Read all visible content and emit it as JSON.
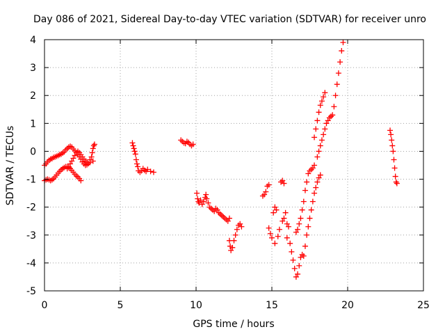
{
  "chart_data": {
    "type": "scatter",
    "title": "Day 086 of 2021, Sidereal Day-to-day VTEC variation (SDTVAR) for receiver unro",
    "xlabel": "GPS time / hours",
    "ylabel": "SDTVAR / TECUs",
    "xlim": [
      0,
      25
    ],
    "ylim": [
      -5,
      4
    ],
    "xticks": [
      0,
      5,
      10,
      15,
      20,
      25
    ],
    "yticks": [
      -5,
      -4,
      -3,
      -2,
      -1,
      0,
      1,
      2,
      3,
      4
    ],
    "xtick_labels": [
      "0",
      "5",
      "10",
      "15",
      "20",
      "25"
    ],
    "ytick_labels": [
      "-5",
      "-4",
      "-3",
      "-2",
      "-1",
      "0",
      "1",
      "2",
      "3",
      "4"
    ],
    "grid": true,
    "marker": "+",
    "series": [
      {
        "name": "SDTVAR",
        "color": "#ff0000",
        "points": [
          [
            0.0,
            -0.5
          ],
          [
            0.1,
            -0.45
          ],
          [
            0.2,
            -0.38
          ],
          [
            0.3,
            -0.32
          ],
          [
            0.4,
            -0.28
          ],
          [
            0.5,
            -0.26
          ],
          [
            0.6,
            -0.22
          ],
          [
            0.7,
            -0.2
          ],
          [
            0.8,
            -0.18
          ],
          [
            0.9,
            -0.15
          ],
          [
            1.0,
            -0.12
          ],
          [
            1.1,
            -0.1
          ],
          [
            1.2,
            -0.06
          ],
          [
            1.3,
            -0.02
          ],
          [
            1.4,
            0.05
          ],
          [
            1.5,
            0.1
          ],
          [
            1.6,
            0.15
          ],
          [
            1.7,
            0.18
          ],
          [
            1.8,
            0.15
          ],
          [
            1.9,
            0.08
          ],
          [
            2.0,
            0.02
          ],
          [
            2.1,
            -0.05
          ],
          [
            2.2,
            -0.12
          ],
          [
            2.3,
            -0.2
          ],
          [
            2.4,
            -0.28
          ],
          [
            2.5,
            -0.38
          ],
          [
            2.6,
            -0.45
          ],
          [
            2.7,
            -0.5
          ],
          [
            2.8,
            -0.48
          ],
          [
            2.9,
            -0.44
          ],
          [
            3.0,
            -0.4
          ],
          [
            0.0,
            -1.05
          ],
          [
            0.1,
            -1.02
          ],
          [
            0.2,
            -1.0
          ],
          [
            0.3,
            -1.02
          ],
          [
            0.4,
            -1.05
          ],
          [
            0.5,
            -1.02
          ],
          [
            0.6,
            -0.98
          ],
          [
            0.7,
            -0.92
          ],
          [
            0.8,
            -0.85
          ],
          [
            0.9,
            -0.78
          ],
          [
            1.0,
            -0.72
          ],
          [
            1.1,
            -0.66
          ],
          [
            1.2,
            -0.62
          ],
          [
            1.3,
            -0.58
          ],
          [
            1.4,
            -0.55
          ],
          [
            1.5,
            -0.55
          ],
          [
            1.6,
            -0.58
          ],
          [
            1.7,
            -0.62
          ],
          [
            1.8,
            -0.68
          ],
          [
            1.9,
            -0.75
          ],
          [
            2.0,
            -0.82
          ],
          [
            2.1,
            -0.88
          ],
          [
            2.2,
            -0.92
          ],
          [
            2.3,
            -0.98
          ],
          [
            2.4,
            -1.05
          ],
          [
            1.5,
            -0.62
          ],
          [
            1.6,
            -0.55
          ],
          [
            1.7,
            -0.45
          ],
          [
            1.8,
            -0.35
          ],
          [
            1.9,
            -0.25
          ],
          [
            2.0,
            -0.15
          ],
          [
            2.1,
            -0.05
          ],
          [
            2.2,
            0.0
          ],
          [
            2.3,
            -0.05
          ],
          [
            2.4,
            -0.12
          ],
          [
            2.5,
            -0.2
          ],
          [
            2.6,
            -0.28
          ],
          [
            2.7,
            -0.35
          ],
          [
            2.8,
            -0.4
          ],
          [
            3.0,
            -0.3
          ],
          [
            3.1,
            -0.2
          ],
          [
            3.15,
            -0.05
          ],
          [
            3.2,
            0.1
          ],
          [
            3.25,
            0.2
          ],
          [
            3.3,
            0.25
          ],
          [
            3.2,
            -0.35
          ],
          [
            5.8,
            0.3
          ],
          [
            5.85,
            0.2
          ],
          [
            5.9,
            0.1
          ],
          [
            5.95,
            0.0
          ],
          [
            6.0,
            -0.1
          ],
          [
            6.05,
            -0.3
          ],
          [
            6.1,
            -0.45
          ],
          [
            6.15,
            -0.55
          ],
          [
            6.2,
            -0.7
          ],
          [
            6.3,
            -0.75
          ],
          [
            6.4,
            -0.7
          ],
          [
            6.5,
            -0.62
          ],
          [
            6.6,
            -0.68
          ],
          [
            6.7,
            -0.72
          ],
          [
            6.8,
            -0.65
          ],
          [
            7.0,
            -0.72
          ],
          [
            7.2,
            -0.75
          ],
          [
            9.0,
            0.4
          ],
          [
            9.1,
            0.35
          ],
          [
            9.2,
            0.3
          ],
          [
            9.3,
            0.28
          ],
          [
            9.4,
            0.35
          ],
          [
            9.5,
            0.32
          ],
          [
            9.6,
            0.25
          ],
          [
            9.7,
            0.2
          ],
          [
            9.8,
            0.25
          ],
          [
            10.05,
            -1.5
          ],
          [
            10.1,
            -1.7
          ],
          [
            10.15,
            -1.8
          ],
          [
            10.2,
            -1.85
          ],
          [
            10.3,
            -1.75
          ],
          [
            10.4,
            -1.9
          ],
          [
            10.5,
            -1.8
          ],
          [
            10.6,
            -1.65
          ],
          [
            10.65,
            -1.55
          ],
          [
            10.7,
            -1.7
          ],
          [
            10.8,
            -1.85
          ],
          [
            10.9,
            -2.0
          ],
          [
            11.0,
            -2.05
          ],
          [
            11.1,
            -2.1
          ],
          [
            11.2,
            -2.15
          ],
          [
            11.3,
            -2.05
          ],
          [
            11.4,
            -2.1
          ],
          [
            11.5,
            -2.2
          ],
          [
            11.6,
            -2.25
          ],
          [
            11.7,
            -2.3
          ],
          [
            11.8,
            -2.35
          ],
          [
            11.9,
            -2.4
          ],
          [
            12.0,
            -2.45
          ],
          [
            12.1,
            -2.5
          ],
          [
            12.2,
            -2.4
          ],
          [
            12.2,
            -3.2
          ],
          [
            12.25,
            -3.4
          ],
          [
            12.3,
            -3.55
          ],
          [
            12.4,
            -3.45
          ],
          [
            12.5,
            -3.2
          ],
          [
            12.6,
            -3.0
          ],
          [
            12.7,
            -2.8
          ],
          [
            12.8,
            -2.65
          ],
          [
            12.9,
            -2.6
          ],
          [
            13.0,
            -2.7
          ],
          [
            14.4,
            -1.6
          ],
          [
            14.5,
            -1.55
          ],
          [
            14.6,
            -1.45
          ],
          [
            14.7,
            -1.25
          ],
          [
            14.8,
            -1.2
          ],
          [
            14.8,
            -2.75
          ],
          [
            14.9,
            -2.95
          ],
          [
            15.0,
            -3.1
          ],
          [
            15.1,
            -2.2
          ],
          [
            15.2,
            -2.0
          ],
          [
            15.3,
            -2.1
          ],
          [
            15.2,
            -3.3
          ],
          [
            15.4,
            -3.05
          ],
          [
            15.5,
            -2.8
          ],
          [
            15.6,
            -1.1
          ],
          [
            15.7,
            -1.05
          ],
          [
            15.8,
            -1.15
          ],
          [
            15.7,
            -2.5
          ],
          [
            15.8,
            -2.4
          ],
          [
            15.9,
            -2.2
          ],
          [
            16.0,
            -2.6
          ],
          [
            16.1,
            -2.7
          ],
          [
            16.0,
            -3.1
          ],
          [
            16.2,
            -3.3
          ],
          [
            16.3,
            -3.6
          ],
          [
            16.4,
            -3.9
          ],
          [
            16.5,
            -4.2
          ],
          [
            16.6,
            -4.5
          ],
          [
            16.7,
            -4.4
          ],
          [
            16.8,
            -4.1
          ],
          [
            16.9,
            -3.8
          ],
          [
            17.0,
            -3.7
          ],
          [
            17.1,
            -3.75
          ],
          [
            17.2,
            -3.4
          ],
          [
            17.3,
            -3.0
          ],
          [
            17.4,
            -2.7
          ],
          [
            17.5,
            -2.4
          ],
          [
            17.6,
            -2.1
          ],
          [
            17.7,
            -1.8
          ],
          [
            17.8,
            -1.5
          ],
          [
            17.9,
            -1.3
          ],
          [
            18.0,
            -1.1
          ],
          [
            18.1,
            -0.95
          ],
          [
            18.2,
            -0.85
          ],
          [
            16.6,
            -2.9
          ],
          [
            16.7,
            -2.8
          ],
          [
            16.8,
            -2.6
          ],
          [
            16.9,
            -2.4
          ],
          [
            17.0,
            -2.1
          ],
          [
            17.1,
            -1.8
          ],
          [
            17.2,
            -1.4
          ],
          [
            17.3,
            -1.1
          ],
          [
            17.4,
            -0.8
          ],
          [
            17.5,
            -0.7
          ],
          [
            17.6,
            -0.65
          ],
          [
            17.7,
            -0.6
          ],
          [
            17.8,
            -0.5
          ],
          [
            18.0,
            -0.2
          ],
          [
            18.1,
            0.0
          ],
          [
            18.2,
            0.2
          ],
          [
            18.3,
            0.4
          ],
          [
            18.4,
            0.6
          ],
          [
            18.5,
            0.8
          ],
          [
            18.6,
            1.0
          ],
          [
            18.7,
            1.1
          ],
          [
            18.8,
            1.2
          ],
          [
            18.9,
            1.25
          ],
          [
            19.0,
            1.3
          ],
          [
            19.1,
            1.6
          ],
          [
            19.2,
            2.0
          ],
          [
            19.3,
            2.4
          ],
          [
            19.4,
            2.8
          ],
          [
            19.5,
            3.2
          ],
          [
            19.6,
            3.6
          ],
          [
            19.7,
            3.9
          ],
          [
            17.8,
            0.5
          ],
          [
            17.9,
            0.8
          ],
          [
            18.0,
            1.1
          ],
          [
            18.1,
            1.4
          ],
          [
            18.2,
            1.65
          ],
          [
            18.3,
            1.8
          ],
          [
            18.4,
            1.95
          ],
          [
            18.5,
            2.1
          ],
          [
            22.8,
            0.75
          ],
          [
            22.85,
            0.6
          ],
          [
            22.9,
            0.4
          ],
          [
            22.95,
            0.2
          ],
          [
            23.0,
            0.0
          ],
          [
            23.05,
            -0.3
          ],
          [
            23.1,
            -0.6
          ],
          [
            23.15,
            -0.9
          ],
          [
            23.2,
            -1.1
          ],
          [
            23.25,
            -1.15
          ]
        ]
      }
    ]
  }
}
